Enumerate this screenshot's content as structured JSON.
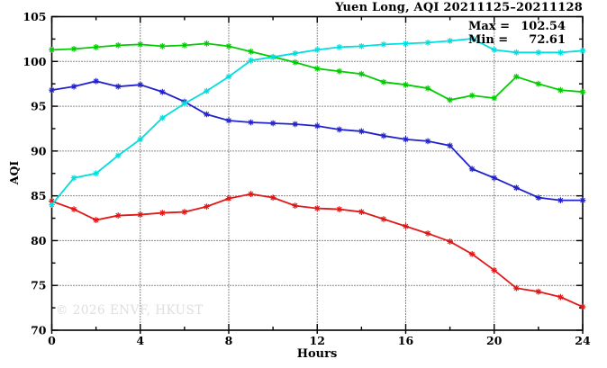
{
  "title": "Yuen Long, AQI 20211125–20211128",
  "axes": {
    "ylabel": "AQI",
    "xlabel": "Hours"
  },
  "annotation": {
    "max_label": "Max =",
    "max_value": "102.54",
    "min_label": "Min =",
    "min_value": "72.61"
  },
  "watermark": "© 2026 ENVF, HKUST",
  "colors": {
    "series_green": "#00cc00",
    "series_cyan": "#00dede",
    "series_blue": "#2222cc",
    "series_red": "#e01818",
    "grid": "#1a1a1a",
    "border": "#000000",
    "watermark": "#dedede"
  },
  "chart_data": {
    "type": "line",
    "title": "Yuen Long, AQI 20211125–20211128",
    "xlabel": "Hours",
    "ylabel": "AQI",
    "xlim": [
      0,
      24
    ],
    "ylim": [
      70,
      105
    ],
    "x_major_ticks": [
      0,
      4,
      8,
      12,
      16,
      20,
      24
    ],
    "x_minor_ticks": [
      2,
      6,
      10,
      14,
      18,
      22
    ],
    "y_major_ticks": [
      70,
      75,
      80,
      85,
      90,
      95,
      100,
      105
    ],
    "y_minor_ticks": [
      72.5,
      77.5,
      82.5,
      87.5,
      92.5,
      97.5,
      102.5
    ],
    "grid": "dotted lines at major ticks, both axes",
    "legend": "none",
    "marker": "asterisk",
    "stats": {
      "max": 102.54,
      "min": 72.61
    },
    "x": [
      0,
      1,
      2,
      3,
      4,
      5,
      6,
      7,
      8,
      9,
      10,
      11,
      12,
      13,
      14,
      15,
      16,
      17,
      18,
      19,
      20,
      21,
      22,
      23,
      24
    ],
    "series": [
      {
        "name": "green",
        "color": "#00cc00",
        "values": [
          101.3,
          101.4,
          101.6,
          101.8,
          101.9,
          101.7,
          101.8,
          102.0,
          101.7,
          101.1,
          100.5,
          99.9,
          99.2,
          98.9,
          98.6,
          97.7,
          97.4,
          97.0,
          95.7,
          96.2,
          95.9,
          98.3,
          97.5,
          96.8,
          96.6
        ]
      },
      {
        "name": "blue",
        "color": "#2222cc",
        "values": [
          96.8,
          97.2,
          97.8,
          97.2,
          97.4,
          96.6,
          95.5,
          94.1,
          93.4,
          93.2,
          93.1,
          93.0,
          92.8,
          92.4,
          92.2,
          91.7,
          91.3,
          91.1,
          90.6,
          88.0,
          87.0,
          85.9,
          84.8,
          84.5,
          84.5
        ]
      },
      {
        "name": "red",
        "color": "#e01818",
        "values": [
          84.4,
          83.5,
          82.3,
          82.8,
          82.9,
          83.1,
          83.2,
          83.8,
          84.7,
          85.2,
          84.8,
          83.9,
          83.6,
          83.5,
          83.2,
          82.4,
          81.6,
          80.8,
          79.9,
          78.5,
          76.7,
          74.7,
          74.3,
          73.7,
          72.61
        ]
      },
      {
        "name": "cyan",
        "color": "#00dede",
        "values": [
          84.0,
          87.0,
          87.5,
          89.5,
          91.3,
          93.7,
          95.3,
          96.7,
          98.3,
          100.1,
          100.5,
          100.9,
          101.3,
          101.6,
          101.7,
          101.9,
          102.0,
          102.1,
          102.3,
          102.54,
          101.3,
          101.0,
          101.0,
          101.0,
          101.2
        ]
      }
    ]
  }
}
